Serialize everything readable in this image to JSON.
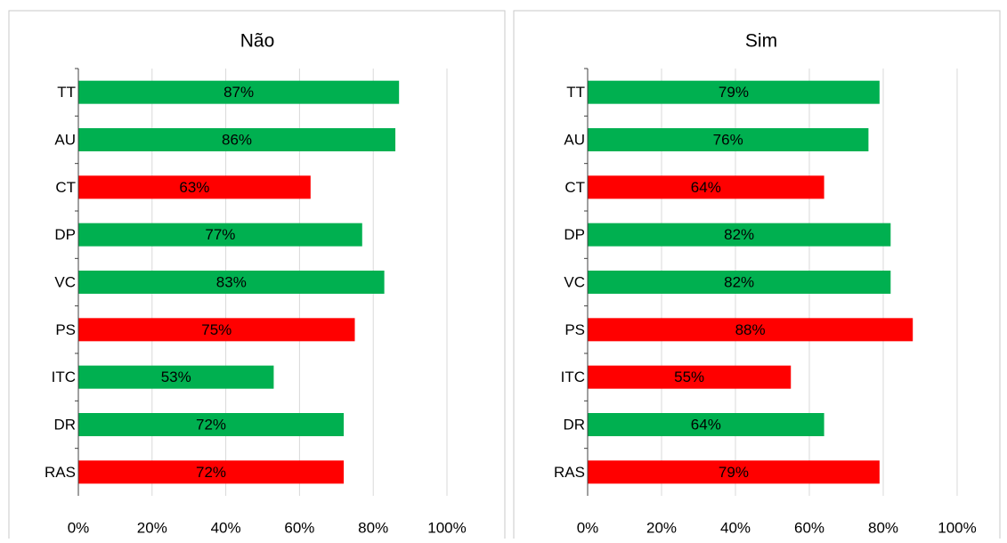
{
  "chart_data": [
    {
      "type": "bar",
      "orientation": "horizontal",
      "title": "Não",
      "categories": [
        "TT",
        "AU",
        "CT",
        "DP",
        "VC",
        "PS",
        "ITC",
        "DR",
        "RAS"
      ],
      "values": [
        87,
        86,
        63,
        77,
        83,
        75,
        53,
        72,
        72
      ],
      "value_labels": [
        "87%",
        "86%",
        "63%",
        "77%",
        "83%",
        "75%",
        "53%",
        "72%",
        "72%"
      ],
      "colors": [
        "#00b050",
        "#00b050",
        "#ff0000",
        "#00b050",
        "#00b050",
        "#ff0000",
        "#00b050",
        "#00b050",
        "#ff0000"
      ],
      "xlim": [
        0,
        100
      ],
      "xticks": [
        {
          "value": 0,
          "label": "0%"
        },
        {
          "value": 20,
          "label": "20%"
        },
        {
          "value": 40,
          "label": "40%"
        },
        {
          "value": 60,
          "label": "60%"
        },
        {
          "value": 80,
          "label": "80%"
        },
        {
          "value": 100,
          "label": "100%"
        }
      ],
      "grid": true
    },
    {
      "type": "bar",
      "orientation": "horizontal",
      "title": "Sim",
      "categories": [
        "TT",
        "AU",
        "CT",
        "DP",
        "VC",
        "PS",
        "ITC",
        "DR",
        "RAS"
      ],
      "values": [
        79,
        76,
        64,
        82,
        82,
        88,
        55,
        64,
        79
      ],
      "value_labels": [
        "79%",
        "76%",
        "64%",
        "82%",
        "82%",
        "88%",
        "55%",
        "64%",
        "79%"
      ],
      "colors": [
        "#00b050",
        "#00b050",
        "#ff0000",
        "#00b050",
        "#00b050",
        "#ff0000",
        "#ff0000",
        "#00b050",
        "#ff0000"
      ],
      "xlim": [
        0,
        100
      ],
      "xticks": [
        {
          "value": 0,
          "label": "0%"
        },
        {
          "value": 20,
          "label": "20%"
        },
        {
          "value": 40,
          "label": "40%"
        },
        {
          "value": 60,
          "label": "60%"
        },
        {
          "value": 80,
          "label": "80%"
        },
        {
          "value": 100,
          "label": "100%"
        }
      ],
      "grid": true
    }
  ]
}
